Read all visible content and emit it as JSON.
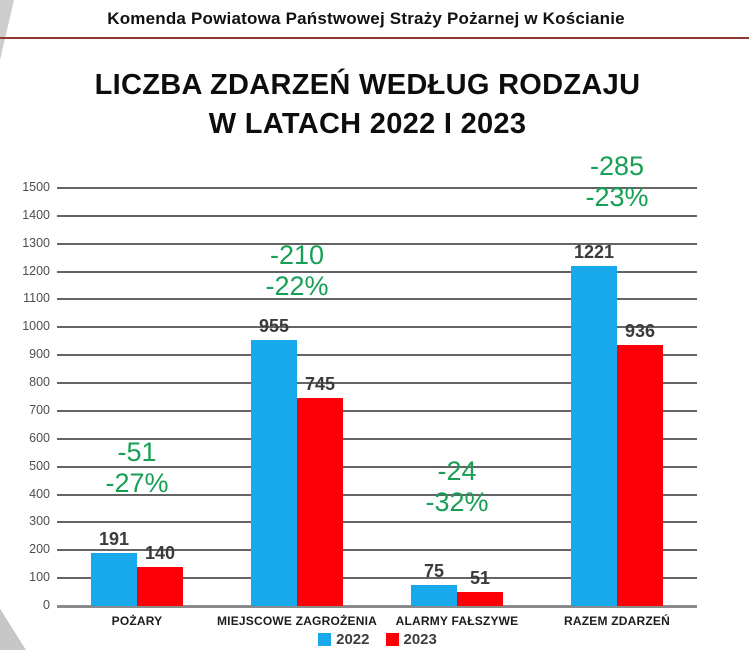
{
  "header": {
    "text": "Komenda Powiatowa Państwowej Straży Pożarnej w Kościanie"
  },
  "title": {
    "line1": "LICZBA ZDARZEŃ WEDŁUG RODZAJU",
    "line2": "W LATACH 2022 I 2023"
  },
  "colors": {
    "series_2022": "#18a8ec",
    "series_2023": "#fb0007",
    "annotation_green": "#17a055",
    "gridline": "#646464",
    "axis_line": "#8a8a8a",
    "header_rule": "#8e3b30"
  },
  "legend": {
    "items": [
      {
        "label": "2022",
        "color_key": "series_2022"
      },
      {
        "label": "2023",
        "color_key": "series_2023"
      }
    ]
  },
  "chart_data": {
    "type": "bar",
    "title": "LICZBA ZDARZEŃ WEDŁUG RODZAJU W LATACH 2022 I 2023",
    "categories": [
      "POŻARY",
      "MIEJSCOWE ZAGROŻENIA",
      "ALARMY FAŁSZYWE",
      "RAZEM ZDARZEŃ"
    ],
    "series": [
      {
        "name": "2022",
        "values": [
          191,
          955,
          75,
          1221
        ]
      },
      {
        "name": "2023",
        "values": [
          140,
          745,
          51,
          936
        ]
      }
    ],
    "annotations": [
      {
        "lines": [
          "-51",
          "-27%"
        ],
        "anchor_y": 385
      },
      {
        "lines": [
          "-210",
          "-22%"
        ],
        "anchor_y": 1090
      },
      {
        "lines": [
          "-24",
          "-32%"
        ],
        "anchor_y": 315
      },
      {
        "lines": [
          "-285",
          "-23%"
        ],
        "anchor_y": 1410
      }
    ],
    "xlabel": "",
    "ylabel": "",
    "ylim": [
      0,
      1500
    ],
    "y_ticks": [
      0,
      100,
      200,
      300,
      400,
      500,
      600,
      700,
      800,
      900,
      1000,
      1100,
      1200,
      1300,
      1400,
      1500
    ],
    "grid": true,
    "legend_position": "bottom"
  }
}
